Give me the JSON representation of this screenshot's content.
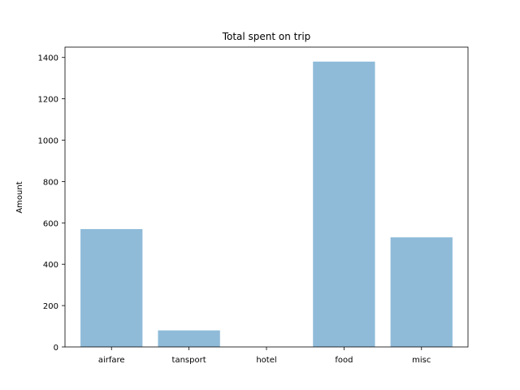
{
  "chart_data": {
    "type": "bar",
    "title": "Total spent on trip",
    "xlabel": "",
    "ylabel": "Amount",
    "categories": [
      "airfare",
      "tansport",
      "hotel",
      "food",
      "misc"
    ],
    "values": [
      570,
      80,
      0,
      1380,
      530
    ],
    "ylim": [
      0,
      1450
    ],
    "yticks": [
      0,
      200,
      400,
      600,
      800,
      1000,
      1200,
      1400
    ],
    "bar_color": "#8fbbd9",
    "grid": false,
    "legend": "none"
  }
}
